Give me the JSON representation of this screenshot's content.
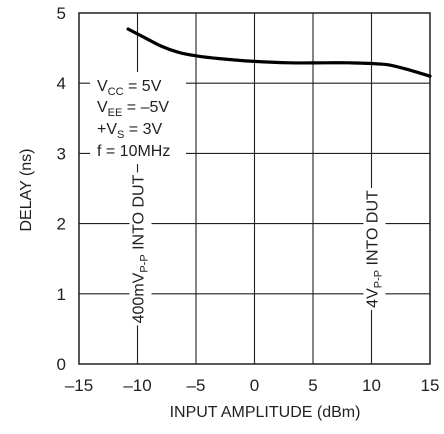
{
  "chart_data": {
    "type": "line",
    "xlabel": "INPUT AMPLITUDE (dBm)",
    "ylabel": "DELAY (ns)",
    "xlim": [
      -15,
      15
    ],
    "ylim": [
      0,
      5
    ],
    "x_ticks": [
      "–15",
      "–10",
      "–5",
      "0",
      "5",
      "10",
      "15"
    ],
    "y_ticks": [
      "0",
      "1",
      "2",
      "3",
      "4",
      "5"
    ],
    "grid": true,
    "series": [
      {
        "x": [
          -10.8,
          -9.5,
          -8.0,
          -6.5,
          -5.0,
          -3.0,
          0.0,
          3.0,
          6.0,
          8.0,
          10.0,
          11.5,
          13.0,
          15.0
        ],
        "y": [
          4.77,
          4.66,
          4.53,
          4.44,
          4.39,
          4.35,
          4.31,
          4.29,
          4.29,
          4.29,
          4.28,
          4.26,
          4.2,
          4.1
        ]
      }
    ],
    "conditions": {
      "vcc": {
        "main": "V",
        "sub": "CC",
        "rest": " = 5V"
      },
      "vee": {
        "main": "V",
        "sub": "EE",
        "rest": " = –5V"
      },
      "vs": {
        "main": "+V",
        "sub": "S",
        "rest": " = 3V"
      },
      "freq": {
        "text": "f = 10MHz"
      }
    },
    "annotations": [
      {
        "pre": "400mV",
        "sub": "P-P",
        "post": " INTO DUT",
        "x": -10
      },
      {
        "pre": "4V",
        "sub": "P-P",
        "post": " INTO DUT",
        "x": 10
      }
    ]
  }
}
